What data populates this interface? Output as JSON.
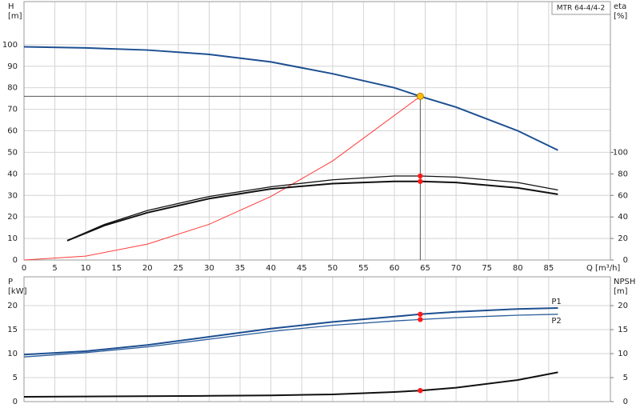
{
  "chart_data": [
    {
      "type": "line",
      "title": "MTR 64-4/4-2",
      "ylabel": "H",
      "yunit": "[m]",
      "y2label": "eta",
      "y2unit": "[%]",
      "xlabel": "Q [m³/h]",
      "xlim": [
        0,
        95
      ],
      "xticks": [
        0,
        5,
        10,
        15,
        20,
        25,
        30,
        35,
        40,
        45,
        50,
        55,
        60,
        65,
        70,
        75,
        80,
        85
      ],
      "ylim": [
        0,
        120
      ],
      "yticks": [
        0,
        10,
        20,
        30,
        40,
        50,
        60,
        70,
        80,
        90,
        100
      ],
      "y2lim": [
        0,
        240
      ],
      "y2ticks": [
        0,
        20,
        40,
        60,
        80,
        100
      ],
      "grid": true,
      "operating_point": {
        "x": 64.2,
        "y": 76
      },
      "series": [
        {
          "color": "#1d4f91",
          "width": 2,
          "x": [
            0,
            10,
            20,
            30,
            40,
            50,
            60,
            64.2,
            70,
            80,
            86.5
          ],
          "values": [
            99,
            98.5,
            97.5,
            95.5,
            92,
            86.5,
            80,
            76,
            71,
            60,
            51
          ]
        },
        {
          "color": "#ff3b3b",
          "width": 1,
          "x": [
            0,
            10,
            20,
            30,
            40,
            50,
            64.2
          ],
          "values": [
            0,
            1.8,
            7.4,
            16.6,
            29.5,
            46,
            76
          ]
        },
        {
          "color": "#111111",
          "width": 1.3,
          "axis": "y2",
          "x": [
            7,
            13,
            20,
            30,
            40,
            50,
            60,
            64.2,
            70,
            80,
            86.5
          ],
          "values": [
            18,
            33,
            46,
            59,
            68,
            74.5,
            78,
            78,
            77,
            72,
            65
          ]
        },
        {
          "color": "#111111",
          "width": 2,
          "axis": "y2",
          "x": [
            7,
            13,
            20,
            30,
            40,
            50,
            60,
            64.2,
            70,
            80,
            86.5
          ],
          "values": [
            18,
            32,
            44,
            57,
            66,
            71,
            73,
            73,
            72,
            67,
            61
          ]
        }
      ]
    },
    {
      "type": "line",
      "ylabel": "P",
      "yunit": "[kW]",
      "y2label": "NPSH",
      "y2unit": "[m]",
      "xlim": [
        0,
        95
      ],
      "xticks": [
        0,
        5,
        10,
        15,
        20,
        25,
        30,
        35,
        40,
        45,
        50,
        55,
        60,
        65,
        70,
        75,
        80,
        85
      ],
      "ylim": [
        0,
        26
      ],
      "yticks": [
        0,
        5,
        10,
        15,
        20
      ],
      "y2lim": [
        0,
        26
      ],
      "y2ticks": [
        0,
        5,
        10,
        15,
        20
      ],
      "grid": true,
      "operating_point": {
        "x": 64.2
      },
      "series": [
        {
          "name": "P1",
          "color": "#1d4f91",
          "width": 2,
          "x": [
            0,
            10,
            20,
            30,
            40,
            50,
            60,
            64.2,
            70,
            80,
            86.5
          ],
          "values": [
            9.8,
            10.5,
            11.8,
            13.5,
            15.2,
            16.6,
            17.7,
            18.2,
            18.7,
            19.3,
            19.5
          ]
        },
        {
          "name": "P2",
          "color": "#2c5d9c",
          "width": 1.3,
          "x": [
            0,
            10,
            20,
            30,
            40,
            50,
            60,
            64.2,
            70,
            80,
            86.5
          ],
          "values": [
            9.3,
            10.2,
            11.4,
            13,
            14.6,
            15.9,
            16.8,
            17.1,
            17.5,
            18,
            18.2
          ]
        },
        {
          "color": "#111111",
          "width": 2,
          "axis": "y2",
          "x": [
            0,
            30,
            40,
            50,
            60,
            64.2,
            70,
            80,
            86.5
          ],
          "values": [
            1,
            1.2,
            1.3,
            1.5,
            2,
            2.3,
            2.9,
            4.5,
            6.1
          ]
        }
      ]
    }
  ]
}
